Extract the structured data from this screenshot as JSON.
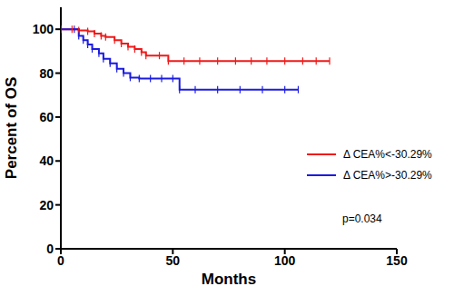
{
  "chart_data": {
    "type": "line",
    "x_label": "Months",
    "y_label": "Percent of OS",
    "xlim": [
      0,
      150
    ],
    "xticks": [
      0,
      50,
      100,
      150
    ],
    "ylim": [
      0,
      110
    ],
    "yticks": [
      0,
      20,
      40,
      60,
      80,
      100
    ],
    "grid": false,
    "legend": "right",
    "line_style": "step",
    "annotations": [
      "p=0.034"
    ],
    "series": [
      {
        "name": "Δ CEA%<-30.29%",
        "color": "#f01a1a",
        "marker": "|",
        "x": [
          0,
          5,
          8,
          12,
          15,
          18,
          20,
          24,
          27,
          30,
          33,
          36,
          38,
          44,
          48,
          55,
          62,
          70,
          78,
          85,
          92,
          100,
          108,
          114,
          120
        ],
        "values": [
          100,
          100,
          99.5,
          99,
          98,
          97,
          96.5,
          95,
          93.5,
          92,
          91,
          89.5,
          88,
          88,
          85.5,
          85.5,
          85.5,
          85.5,
          85.5,
          85.5,
          85.5,
          85.5,
          85.5,
          85.5,
          85.5
        ]
      },
      {
        "name": "Δ CEA%>-30.29%",
        "color": "#1c1ce0",
        "marker": "|",
        "x": [
          0,
          6,
          8,
          10,
          12,
          14,
          17,
          19,
          22,
          25,
          28,
          31,
          35,
          40,
          45,
          50,
          53,
          60,
          70,
          80,
          90,
          100,
          106
        ],
        "values": [
          100,
          100,
          97,
          95,
          93,
          91,
          89,
          86.5,
          84.5,
          82,
          80,
          78,
          77.5,
          77.5,
          77.5,
          77.5,
          72.5,
          72.5,
          72.5,
          72.5,
          72.5,
          72.5,
          72.5
        ]
      }
    ]
  }
}
